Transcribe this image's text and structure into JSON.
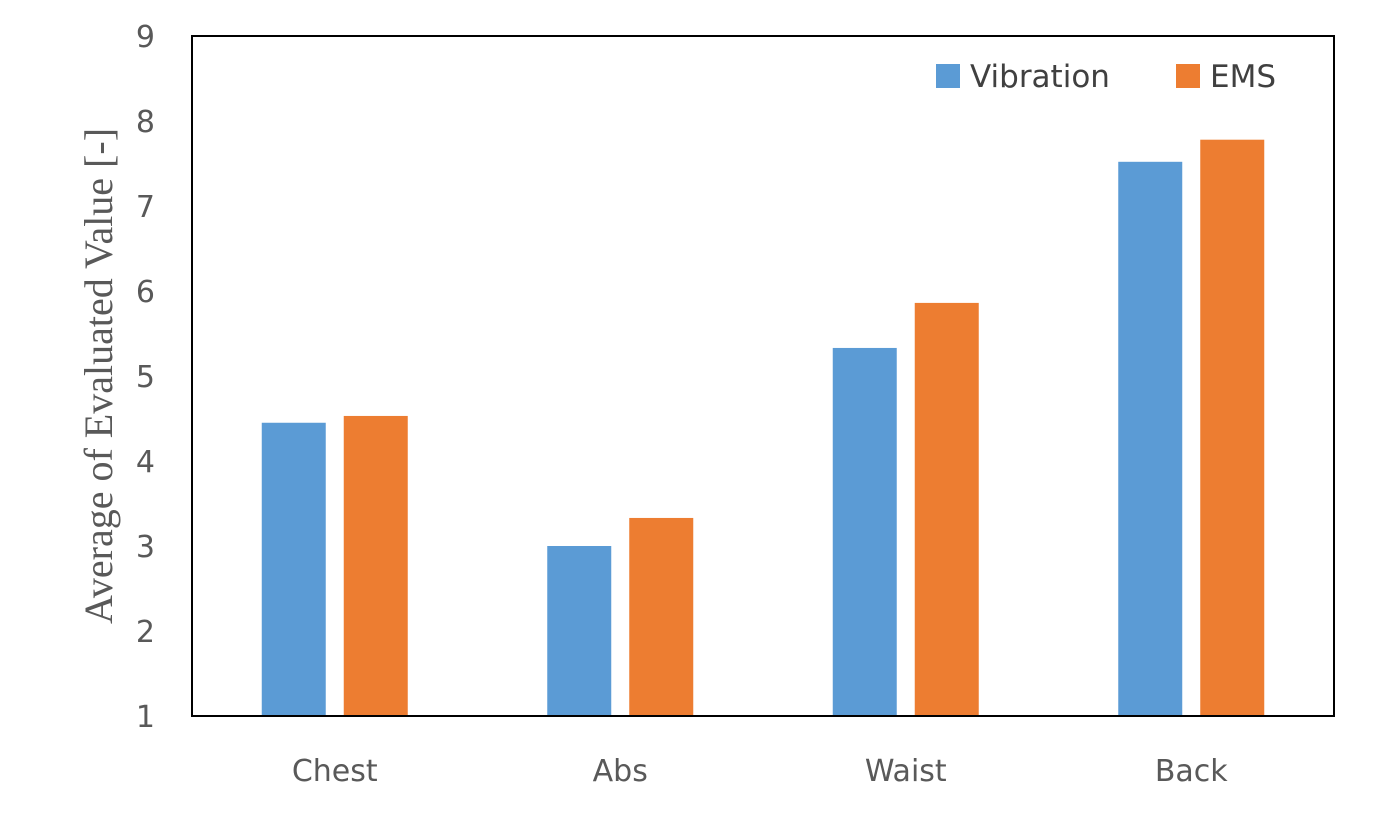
{
  "chart_data": {
    "type": "bar",
    "title": "",
    "xlabel": "",
    "ylabel": "Average of Evaluated Value [-]",
    "categories": [
      "Chest",
      "Abs",
      "Waist",
      "Back"
    ],
    "series": [
      {
        "name": "Vibration",
        "color": "#5B9BD5",
        "values": [
          4.45,
          3.0,
          5.33,
          7.52
        ]
      },
      {
        "name": "EMS",
        "color": "#ED7D31",
        "values": [
          4.53,
          3.33,
          5.86,
          7.78
        ]
      }
    ],
    "ylim": [
      1,
      9
    ],
    "yticks": [
      "1",
      "2",
      "3",
      "4",
      "5",
      "6",
      "7",
      "8",
      "9"
    ],
    "grid": false,
    "legend_position": "top-right"
  }
}
